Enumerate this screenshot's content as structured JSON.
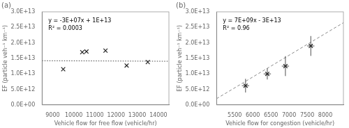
{
  "chart_data": [
    {
      "type": "scatter",
      "title": "(a)",
      "xlabel": "Vehicle flow for free flow (vehicle/hr)",
      "ylabel": "EF (particle veh⁻¹ km⁻¹)",
      "annotations": [
        "y = -3E+07x + 1E+13",
        "R² = 0.0003"
      ],
      "series": [
        {
          "type": "scatter",
          "marker": "x",
          "color": "#222222",
          "x": [
            9500,
            10400,
            10600,
            11500,
            12500,
            13500
          ],
          "values": [
            11500000000000.0,
            17000000000000.0,
            17200000000000.0,
            17500000000000.0,
            12700000000000.0,
            13800000000000.0
          ]
        },
        {
          "type": "line",
          "line_style": "dotted",
          "color": "#444444",
          "x": [
            8500,
            14500
          ],
          "values": [
            14245000000000.0,
            14065000000000.0
          ]
        }
      ],
      "xlim": [
        8500,
        14500
      ],
      "ylim": [
        0.0,
        30000000000000.0
      ],
      "xticks": [
        9000,
        10000,
        11000,
        12000,
        13000,
        14000
      ],
      "yticks": [
        {
          "value": 0.0,
          "label": "0.0E+00"
        },
        {
          "value": 5000000000000.0,
          "label": "5.0E+12"
        },
        {
          "value": 10000000000000.0,
          "label": "1.0E+13"
        },
        {
          "value": 15000000000000.0,
          "label": "1.5E+13"
        },
        {
          "value": 20000000000000.0,
          "label": "2.0E+13"
        },
        {
          "value": 25000000000000.0,
          "label": "2.5E+13"
        },
        {
          "value": 30000000000000.0,
          "label": "3.0E+13"
        }
      ],
      "grid": false
    },
    {
      "type": "scatter",
      "title": "(b)",
      "xlabel": "Vehicle flow for congestion (vehicle/hr)",
      "ylabel": "EF (particle veh⁻¹ km⁻¹)",
      "annotations": [
        "y = 7E+09x - 3E+13",
        "R² = 0.96"
      ],
      "series": [
        {
          "type": "scatter",
          "marker": "x",
          "color": "#222222",
          "x": [
            5800,
            6400,
            6900,
            7600
          ],
          "values": [
            6200000000000.0,
            10000000000000.0,
            12500000000000.0,
            19000000000000.0
          ],
          "xerr": [
            100,
            100,
            100,
            100
          ],
          "yerr": [
            2200000000000.0,
            1800000000000.0,
            3200000000000.0,
            3200000000000.0
          ]
        },
        {
          "type": "line",
          "line_style": "dashed",
          "color": "#888888",
          "x": [
            5000,
            8500
          ],
          "values": [
            2000000000000.0,
            26500000000000.0
          ]
        }
      ],
      "xlim": [
        5000,
        8500
      ],
      "ylim": [
        0.0,
        30000000000000.0
      ],
      "xticks": [
        5500,
        6000,
        6500,
        7000,
        7500,
        8000
      ],
      "yticks": [
        {
          "value": 0.0,
          "label": "0.0E+00"
        },
        {
          "value": 5000000000000.0,
          "label": "5.0E+12"
        },
        {
          "value": 10000000000000.0,
          "label": "1.0E+13"
        },
        {
          "value": 15000000000000.0,
          "label": "1.5E+13"
        },
        {
          "value": 20000000000000.0,
          "label": "2.0E+13"
        },
        {
          "value": 25000000000000.0,
          "label": "2.5E+13"
        },
        {
          "value": 30000000000000.0,
          "label": "3.0E+13"
        }
      ],
      "grid": false
    }
  ]
}
